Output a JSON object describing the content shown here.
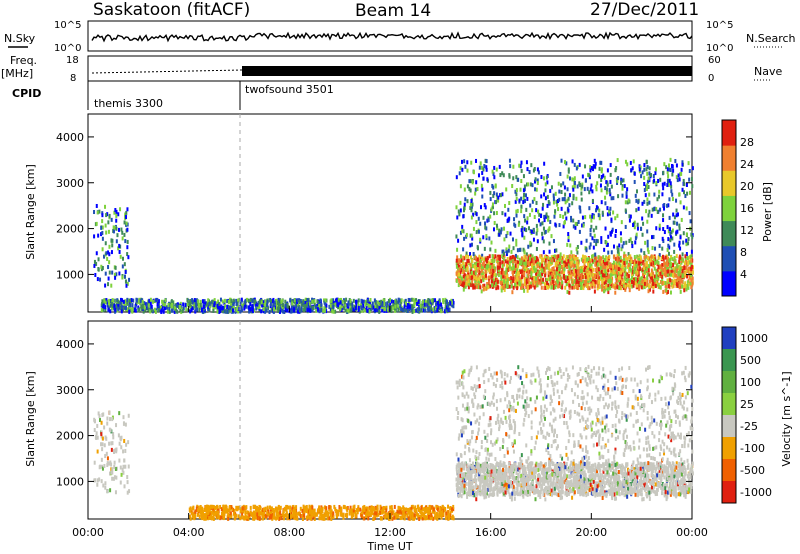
{
  "header": {
    "station": "Saskatoon (fitACF)",
    "beam": "Beam 14",
    "date": "27/Dec/2011"
  },
  "top_panels": {
    "nsky_label": "N.Sky",
    "nsky_ticks": [
      "10^5",
      "10^0"
    ],
    "nsearch_ticks": [
      "10^5",
      "10^0"
    ],
    "nsearch_label": "N.Search",
    "freq_label": "Freq.",
    "freq_unit": "[MHz]",
    "freq_ticks": [
      "18",
      "8"
    ],
    "nave_ticks": [
      "60",
      "0"
    ],
    "nave_label": "Nave",
    "cpid_label": "CPID",
    "cpid_modes": [
      {
        "name": "themis 3300",
        "start_hour": 0
      },
      {
        "name": "twofsound 3501",
        "start_hour": 6
      }
    ]
  },
  "chart_data": [
    {
      "type": "heatmap",
      "panel": "power",
      "xlabel": "",
      "ylabel": "Slant Range [km]",
      "xlim": [
        0,
        24
      ],
      "ylim": [
        180,
        4500
      ],
      "y_ticks": [
        "1000",
        "2000",
        "3000",
        "4000"
      ],
      "colorbar": {
        "label": "Power [dB]",
        "ticks": [
          "4",
          "8",
          "12",
          "16",
          "20",
          "24",
          "28"
        ],
        "colors": [
          "#0000ff",
          "#1f4fb4",
          "#3f8a58",
          "#7ed23c",
          "#e8c82a",
          "#f08030",
          "#e02010"
        ]
      },
      "regions": [
        {
          "t0": 0.2,
          "t1": 1.6,
          "r0": 750,
          "r1": 2500,
          "level": "low-mid, 8-16 dB"
        },
        {
          "t0": 14.6,
          "t1": 24.0,
          "r0": 600,
          "r1": 3500,
          "level": "high, 16-28 dB near 800-1300 km"
        },
        {
          "t0": 0.5,
          "t1": 14.5,
          "r0": 180,
          "r1": 450,
          "level": "sparse ground scatter, 4-16 dB"
        }
      ]
    },
    {
      "type": "heatmap",
      "panel": "velocity",
      "xlabel": "Time UT",
      "ylabel": "Slant Range [km]",
      "xlim": [
        0,
        24
      ],
      "ylim": [
        180,
        4500
      ],
      "x_ticks": [
        "00:00",
        "04:00",
        "08:00",
        "12:00",
        "16:00",
        "20:00",
        "00:00"
      ],
      "y_ticks": [
        "1000",
        "2000",
        "3000",
        "4000"
      ],
      "colorbar": {
        "label": "Velocity [m s^-1]",
        "ticks": [
          "1000",
          "500",
          "100",
          "25",
          "-25",
          "-100",
          "-500",
          "-1000"
        ],
        "colors": [
          "#2040c0",
          "#3a9650",
          "#60b040",
          "#8ad040",
          "#c8c8c0",
          "#f0a000",
          "#f06000",
          "#e02010"
        ]
      },
      "regions": [
        {
          "t0": 0.2,
          "t1": 1.6,
          "r0": 750,
          "r1": 2500,
          "level": "mostly ground scatter (grey), some 100 m/s"
        },
        {
          "t0": 14.6,
          "t1": 24.0,
          "r0": 600,
          "r1": 3500,
          "level": "ground scatter grey, scattered +/-"
        },
        {
          "t0": 4.0,
          "t1": 14.5,
          "r0": 180,
          "r1": 450,
          "level": "-100 m/s, orange"
        }
      ]
    }
  ],
  "colors": {
    "background": "#ffffff",
    "axis": "#000000",
    "cpid_divider": "#000000"
  }
}
